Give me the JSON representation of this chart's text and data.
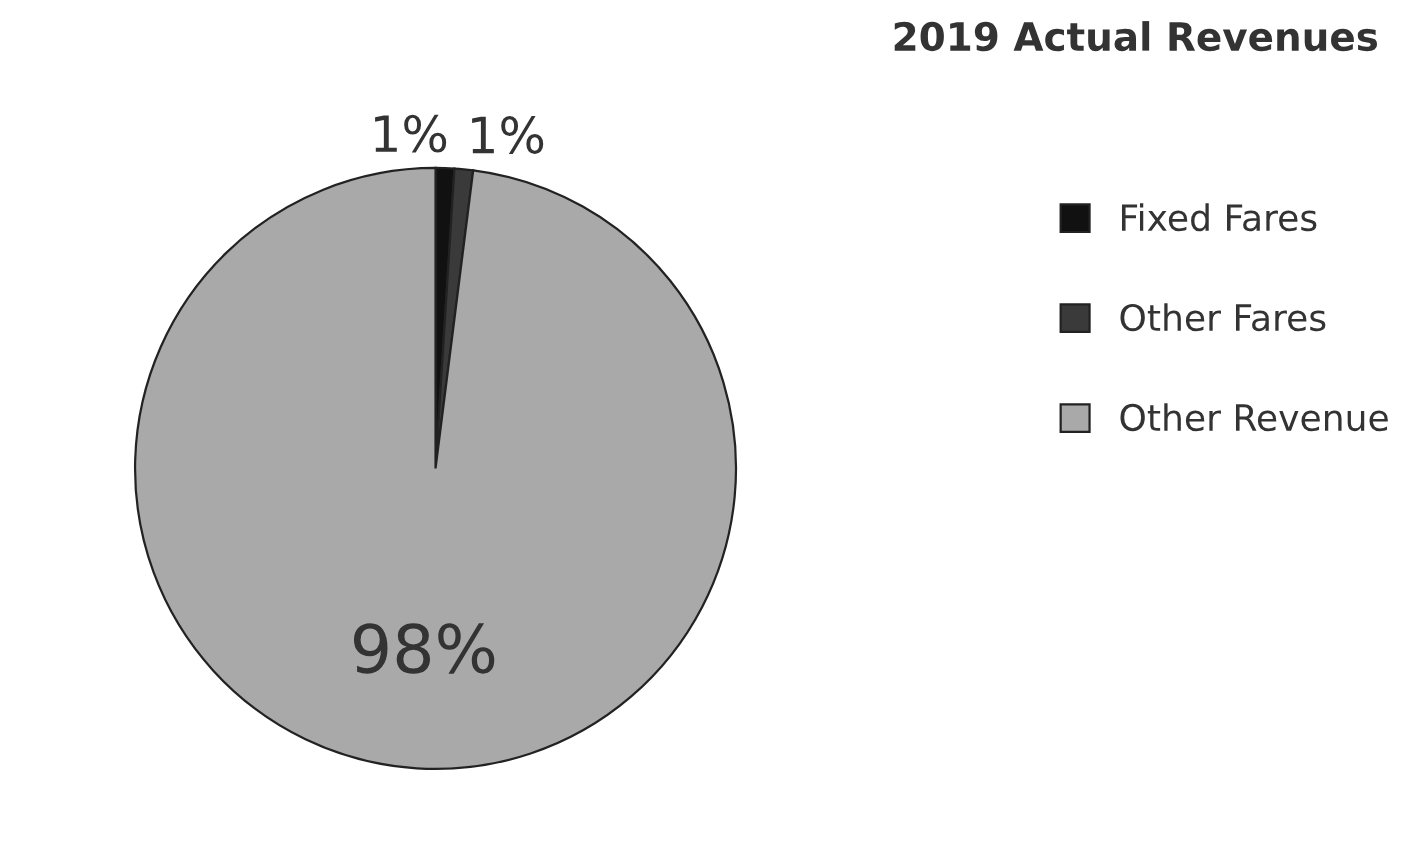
{
  "chart_data": {
    "type": "pie",
    "title": "2019 Actual Revenues",
    "categories": [
      "Fixed Fares",
      "Other Fares",
      "Other Revenue"
    ],
    "values": [
      1,
      1,
      98
    ],
    "value_labels": [
      "1%",
      "1%",
      "98%"
    ],
    "colors": [
      "#111111",
      "#3a3a3a",
      "#a9a9a9"
    ],
    "legend": "right"
  }
}
